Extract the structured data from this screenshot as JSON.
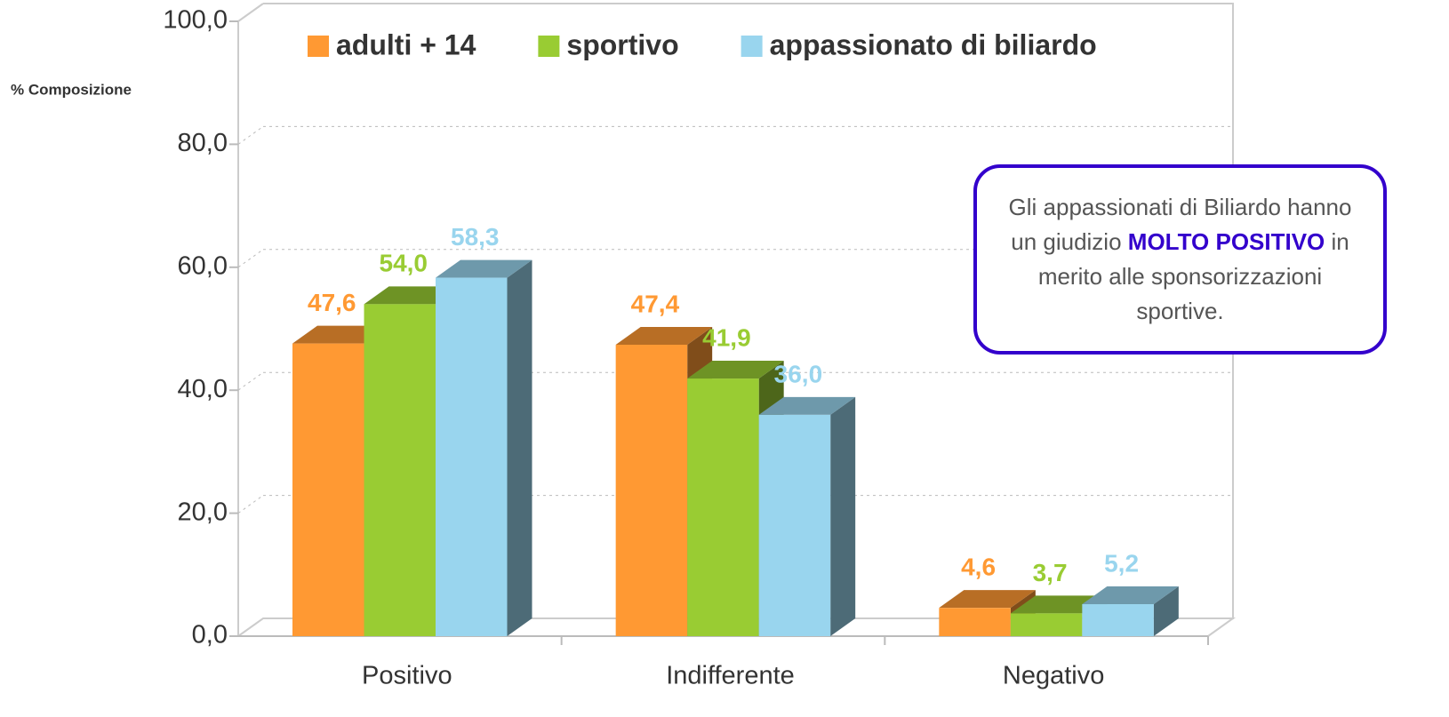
{
  "chart_data": {
    "type": "bar3d",
    "y_axis_label": "% Composizione",
    "categories": [
      "Positivo",
      "Indifferente",
      "Negativo"
    ],
    "series": [
      {
        "name": "adulti + 14",
        "color": "#ff9933",
        "values": [
          47.6,
          47.4,
          4.6
        ],
        "value_labels": [
          "47,6",
          "47,4",
          "4,6"
        ]
      },
      {
        "name": "sportivo",
        "color": "#99cc33",
        "values": [
          54.0,
          41.9,
          3.7
        ],
        "value_labels": [
          "54,0",
          "41,9",
          "3,7"
        ]
      },
      {
        "name": "appassionato di biliardo",
        "color": "#99d5ee",
        "values": [
          58.3,
          36.0,
          5.2
        ],
        "value_labels": [
          "58,3",
          "36,0",
          "5,2"
        ]
      }
    ],
    "ylim": [
      0,
      100
    ],
    "yticks": [
      {
        "value": 0,
        "label": "0,0"
      },
      {
        "value": 20,
        "label": "20,0"
      },
      {
        "value": 40,
        "label": "40,0"
      },
      {
        "value": 60,
        "label": "60,0"
      },
      {
        "value": 80,
        "label": "80,0"
      },
      {
        "value": 100,
        "label": "100,0"
      }
    ],
    "grid": true,
    "legend": "top",
    "annotation": {
      "parts": [
        "Gli appassionati di Biliardo hanno un giudizio ",
        "MOLTO POSITIVO",
        " in merito alle sponsorizzazioni sportive."
      ]
    }
  }
}
